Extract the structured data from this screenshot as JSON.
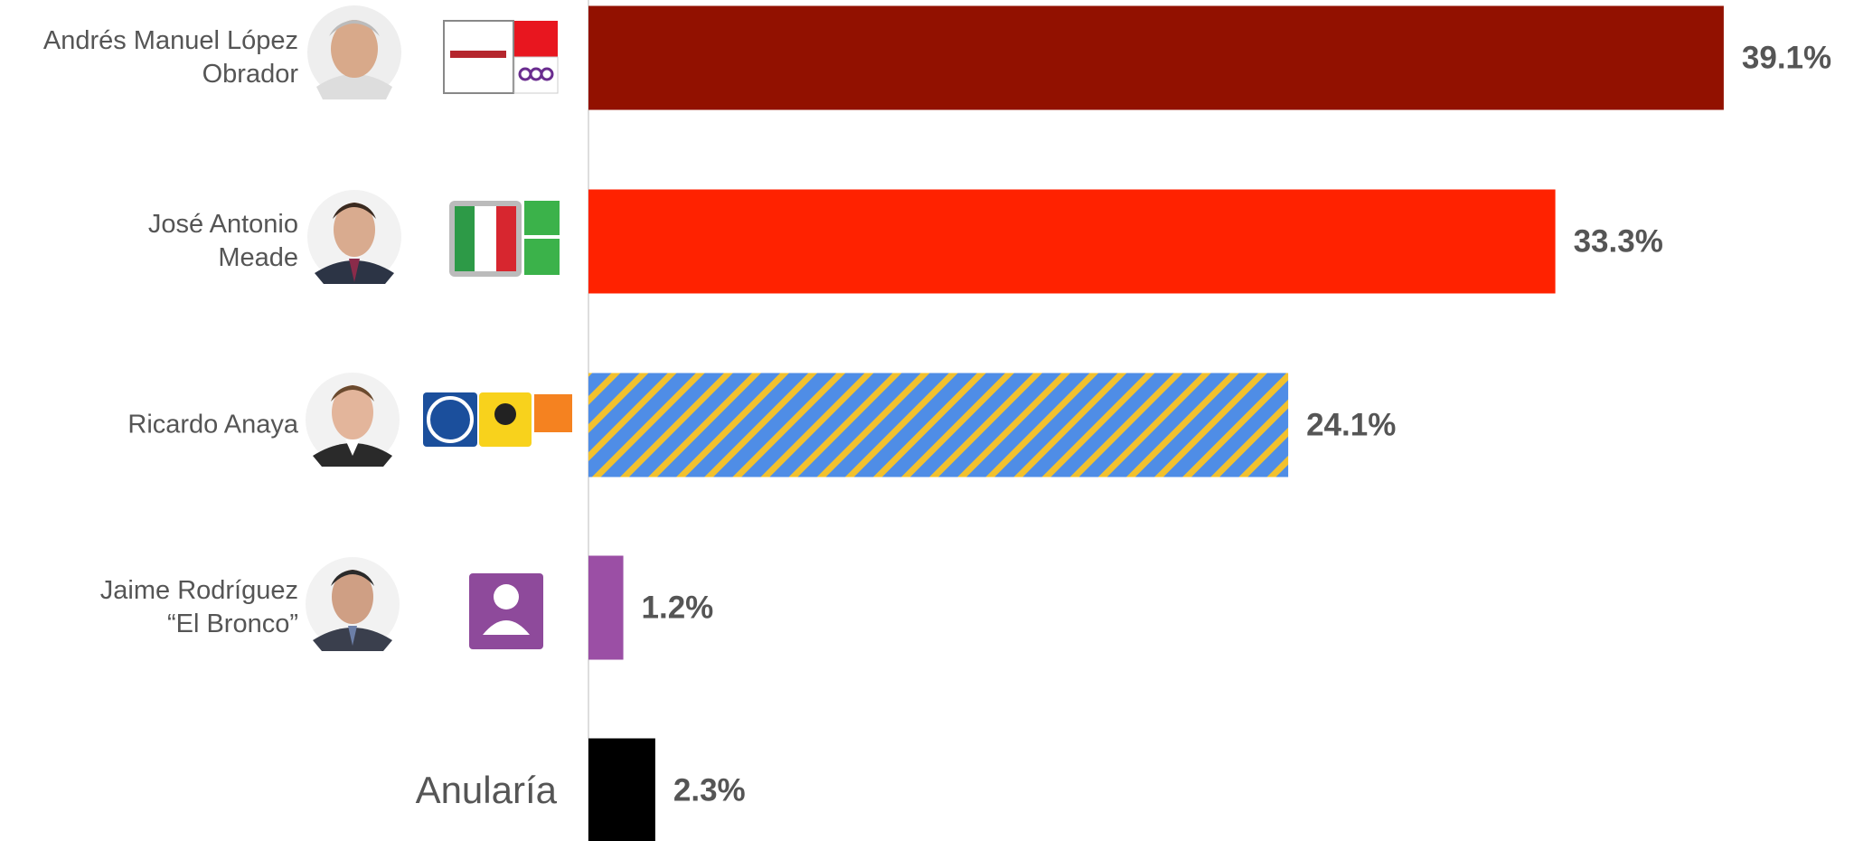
{
  "chart_data": {
    "type": "bar",
    "orientation": "horizontal",
    "categories": [
      "Andrés Manuel López\nObrador",
      "José Antonio\nMeade",
      "Ricardo Anaya",
      "Jaime Rodríguez\n“El Bronco”",
      "Anularía"
    ],
    "values": [
      39.1,
      33.3,
      24.1,
      1.2,
      2.3
    ],
    "value_labels": [
      "39.1%",
      "33.3%",
      "24.1%",
      "1.2%",
      "2.3%"
    ],
    "colors": [
      "#921100",
      "#ff2200",
      "#4f8de6",
      "#9b4fa5",
      "#000000"
    ],
    "stripe_colors": [
      null,
      null,
      "#f2c12e",
      null,
      null
    ]
  }
}
